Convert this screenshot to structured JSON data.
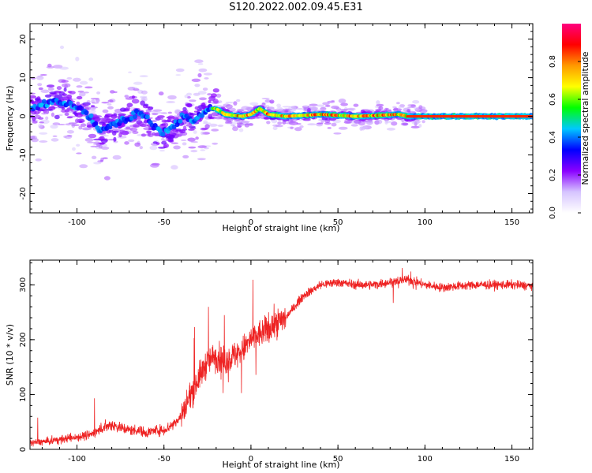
{
  "figure": {
    "title": "S120.2022.002.09.45.E31"
  },
  "colorbar": {
    "label": "Normalized spectral amplitude",
    "range": [
      0.0,
      1.0
    ],
    "ticks": [
      "0.0",
      "0.2",
      "0.4",
      "0.6",
      "0.8"
    ],
    "colors": [
      "#ffffff",
      "#d6c4ff",
      "#8a00ff",
      "#0000ff",
      "#00c8ff",
      "#00ff00",
      "#ffff00",
      "#ff9900",
      "#ff0000",
      "#ff007f"
    ]
  },
  "chart_data": [
    {
      "type": "heatmap",
      "name": "spectrogram",
      "xlabel": "Height of straight line (km)",
      "ylabel": "Frequency (Hz)",
      "xlim": [
        -127,
        162
      ],
      "ylim": [
        -25,
        24
      ],
      "xticks": [
        -100,
        -50,
        0,
        50,
        100,
        150
      ],
      "yticks": [
        -20,
        -10,
        0,
        10,
        20
      ],
      "ridge": [
        {
          "x": -125,
          "y": 2
        },
        {
          "x": -115,
          "y": 4
        },
        {
          "x": -105,
          "y": 3
        },
        {
          "x": -98,
          "y": 2
        },
        {
          "x": -93,
          "y": 0
        },
        {
          "x": -87,
          "y": -4
        },
        {
          "x": -80,
          "y": -2
        },
        {
          "x": -72,
          "y": -1
        },
        {
          "x": -65,
          "y": 1
        },
        {
          "x": -60,
          "y": 0
        },
        {
          "x": -55,
          "y": -3
        },
        {
          "x": -50,
          "y": -4
        },
        {
          "x": -45,
          "y": -3
        },
        {
          "x": -40,
          "y": 0
        },
        {
          "x": -33,
          "y": -1
        },
        {
          "x": -25,
          "y": 2
        },
        {
          "x": -20,
          "y": 2
        },
        {
          "x": -15,
          "y": 0.5
        },
        {
          "x": -5,
          "y": 0
        },
        {
          "x": 0,
          "y": 0.5
        },
        {
          "x": 5,
          "y": 2
        },
        {
          "x": 10,
          "y": 0.5
        },
        {
          "x": 20,
          "y": 0
        },
        {
          "x": 40,
          "y": 0.5
        },
        {
          "x": 60,
          "y": 0
        },
        {
          "x": 85,
          "y": 0.5
        },
        {
          "x": 90,
          "y": 0
        },
        {
          "x": 162,
          "y": 0
        }
      ]
    },
    {
      "type": "line",
      "name": "snr",
      "xlabel": "Height of straight line (km)",
      "ylabel": "SNR (10 * v/v)",
      "xlim": [
        -127,
        162
      ],
      "ylim": [
        0,
        345
      ],
      "xticks": [
        -100,
        -50,
        0,
        50,
        100,
        150
      ],
      "yticks": [
        0,
        100,
        200,
        300
      ],
      "color": "#ee2222",
      "x": [
        -127,
        -115,
        -105,
        -95,
        -90,
        -85,
        -80,
        -75,
        -70,
        -65,
        -60,
        -55,
        -50,
        -45,
        -40,
        -35,
        -30,
        -25,
        -20,
        -15,
        -10,
        -5,
        0,
        5,
        10,
        15,
        20,
        25,
        30,
        35,
        40,
        50,
        60,
        70,
        80,
        90,
        100,
        110,
        120,
        130,
        140,
        150,
        162
      ],
      "y": [
        12,
        15,
        20,
        25,
        30,
        40,
        45,
        40,
        35,
        35,
        30,
        35,
        35,
        45,
        60,
        100,
        130,
        160,
        170,
        160,
        170,
        180,
        200,
        210,
        220,
        230,
        240,
        260,
        280,
        290,
        300,
        305,
        300,
        300,
        305,
        310,
        300,
        295,
        298,
        300,
        300,
        300,
        298
      ]
    }
  ]
}
